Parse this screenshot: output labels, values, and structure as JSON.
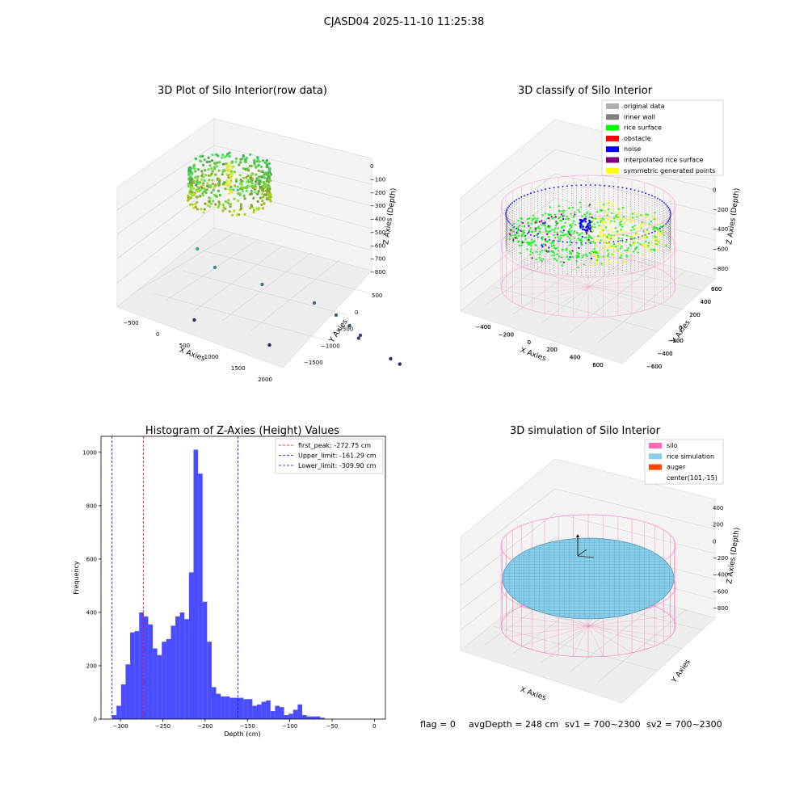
{
  "suptitle": "CJASD04 2025-11-10 11:25:38",
  "status": {
    "flag": "flag = 0",
    "avg_depth": "avgDepth = 248 cm",
    "sv1": "sv1 = 700~2300",
    "sv2": "sv2 = 700~2300"
  },
  "colors": {
    "hist_bar": "#4b4bff",
    "first_peak_line": "#ff0000",
    "limit_line": "#0000cc",
    "original_data": "#b0b0b0",
    "inner_wall": "#808080",
    "rice_surface": "#00ff00",
    "obstacle": "#ff0000",
    "noise": "#0000ff",
    "interpolated_rice_surface": "#800080",
    "symmetric_generated_points": "#ffff00",
    "silo": "#ff69b4",
    "rice_simulation": "#87ceeb",
    "auger": "#ff4500"
  },
  "chart_data": [
    {
      "type": "scatter",
      "title": "3D Plot of Silo Interior(row data)",
      "xlabel": "X Axies",
      "ylabel": "Y Axies",
      "zlabel": "Z Axies (Depth)",
      "x_ticks": [
        "−500",
        "0",
        "500",
        "1000",
        "1500",
        "2000"
      ],
      "y_ticks": [
        "500",
        "0",
        "−500",
        "−1000",
        "−1500"
      ],
      "z_ticks": [
        "0",
        "−100",
        "−200",
        "−300",
        "−400",
        "−500",
        "−600",
        "−700",
        "−800"
      ],
      "outliers": [
        {
          "x": 150,
          "y": -100,
          "z": -350
        },
        {
          "x": 300,
          "y": -200,
          "z": -450
        },
        {
          "x": 800,
          "y": -300,
          "z": -500
        },
        {
          "x": 1300,
          "y": -500,
          "z": -550
        },
        {
          "x": 1500,
          "y": -600,
          "z": -600
        },
        {
          "x": 1600,
          "y": -700,
          "z": -650
        },
        {
          "x": 1700,
          "y": -750,
          "z": -700
        },
        {
          "x": 1650,
          "y": -800,
          "z": -720
        },
        {
          "x": 1800,
          "y": -1200,
          "z": -800
        },
        {
          "x": 1850,
          "y": -1300,
          "z": -820
        },
        {
          "x": -400,
          "y": -1000,
          "z": -800
        },
        {
          "x": 200,
          "y": -1500,
          "z": -850
        }
      ]
    },
    {
      "type": "scatter",
      "title": "3D classify of Silo Interior",
      "xlabel": "X Axies",
      "ylabel": "Y Axies",
      "zlabel": "Z Axies (Depth)",
      "x_ticks": [
        "−400",
        "−200",
        "0",
        "200",
        "400",
        "600"
      ],
      "y_ticks": [
        "600",
        "400",
        "200",
        "0",
        "−200",
        "−400",
        "−600"
      ],
      "z_ticks": [
        "200",
        "0",
        "−200",
        "−400",
        "−600",
        "−800"
      ],
      "legend": [
        {
          "label": "original data",
          "color": "#b0b0b0"
        },
        {
          "label": "inner wall",
          "color": "#808080"
        },
        {
          "label": "rice surface",
          "color": "#00ff00"
        },
        {
          "label": "obstacle",
          "color": "#ff0000"
        },
        {
          "label": "noise",
          "color": "#0000ff"
        },
        {
          "label": "interpolated rice surface",
          "color": "#800080"
        },
        {
          "label": "symmetric generated points",
          "color": "#ffff00"
        }
      ]
    },
    {
      "type": "bar",
      "title": "Histogram of Z-Axies (Height) Values",
      "xlabel": "Depth (cm)",
      "ylabel": "Frequency",
      "xlim": [
        -323,
        13
      ],
      "ylim": [
        0,
        1060
      ],
      "x_ticks": [
        -300,
        -250,
        -200,
        -150,
        -100,
        -50,
        0
      ],
      "y_ticks": [
        0,
        200,
        400,
        600,
        800,
        1000
      ],
      "bin_start": -310,
      "bin_width": 5.35,
      "values": [
        15,
        50,
        130,
        205,
        325,
        330,
        400,
        385,
        355,
        265,
        240,
        290,
        300,
        350,
        385,
        400,
        375,
        550,
        1010,
        920,
        440,
        290,
        120,
        95,
        85,
        85,
        80,
        80,
        80,
        75,
        75,
        50,
        55,
        65,
        70,
        30,
        50,
        45,
        15,
        20,
        35,
        55,
        15,
        10,
        10,
        10,
        5,
        0
      ],
      "vlines": [
        {
          "label": "first_peak: -272.75 cm",
          "x": -272.75,
          "color": "#ff0000"
        },
        {
          "label": "Upper_limit: -161.29 cm",
          "x": -161.29,
          "color": "#0000cc"
        },
        {
          "label": "Lower_limit: -309.90 cm",
          "x": -309.9,
          "color": "#0000cc"
        }
      ]
    },
    {
      "type": "scatter",
      "title": "3D simulation of Silo Interior",
      "xlabel": "X Axies",
      "ylabel": "Y Axies",
      "zlabel": "Z Axies (Depth)",
      "x_ticks": [
        "−400",
        "−200",
        "0",
        "200",
        "400",
        "600"
      ],
      "y_ticks": [
        "600",
        "400",
        "200",
        "0",
        "−200",
        "−400",
        "−600"
      ],
      "z_ticks": [
        "400",
        "200",
        "0",
        "−200",
        "−400",
        "−600",
        "−800"
      ],
      "legend": [
        {
          "label": "silo",
          "color": "#ff69b4"
        },
        {
          "label": "rice simulation",
          "color": "#87ceeb"
        },
        {
          "label": "auger",
          "color": "#ff4500"
        },
        {
          "label": "center(101,-15)",
          "color": ""
        }
      ]
    }
  ]
}
